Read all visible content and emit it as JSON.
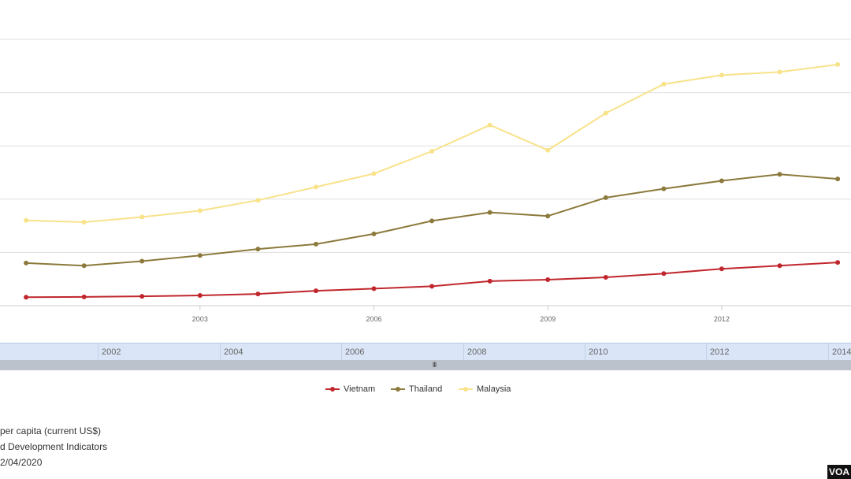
{
  "chart_data": {
    "type": "line",
    "x": [
      2000,
      2001,
      2002,
      2003,
      2004,
      2005,
      2006,
      2007,
      2008,
      2009,
      2010,
      2011,
      2012,
      2013,
      2014
    ],
    "xlim": [
      1999.55,
      2014.23
    ],
    "ylim": [
      0,
      12500
    ],
    "x_ticks": [
      "2003",
      "2006",
      "2009",
      "2012"
    ],
    "grid": true,
    "legend_position": "bottom-center",
    "series": [
      {
        "name": "Vietnam",
        "color": "#c0272d",
        "values": [
          400,
          410,
          440,
          480,
          550,
          700,
          800,
          910,
          1150,
          1220,
          1330,
          1510,
          1730,
          1880,
          2030
        ]
      },
      {
        "name": "Thailand",
        "color": "#8b7a3c",
        "values": [
          2000,
          1880,
          2090,
          2360,
          2660,
          2890,
          3370,
          3980,
          4380,
          4210,
          5070,
          5490,
          5860,
          6170,
          5950
        ]
      },
      {
        "name": "Malaysia",
        "color": "#f8e28a",
        "values": [
          4000,
          3920,
          4160,
          4460,
          4950,
          5570,
          6200,
          7250,
          8480,
          7300,
          9040,
          10400,
          10820,
          10970,
          11320
        ]
      }
    ]
  },
  "navigator": {
    "labels": [
      "2002",
      "2004",
      "2006",
      "2008",
      "2010",
      "2012",
      "2014"
    ],
    "grip": "III"
  },
  "source": {
    "line1": "per capita (current US$)",
    "line2": "d Development Indicators",
    "line3": "2/04/2020"
  },
  "logo": "VOA"
}
